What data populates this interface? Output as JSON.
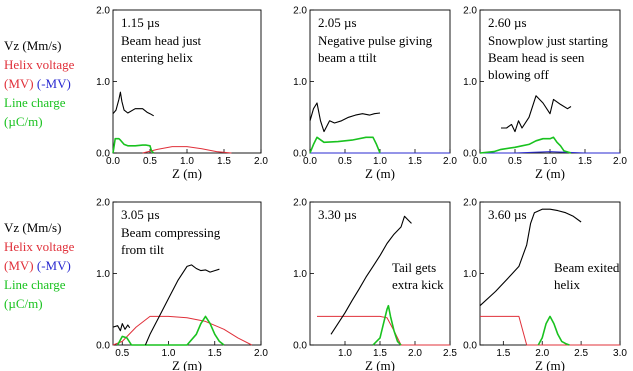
{
  "legend": {
    "vz": "Vz (Mm/s)",
    "helix_label": "Helix voltage",
    "helix_pos": "(MV)",
    "helix_neg": "(-MV)",
    "line_label": "Line charge",
    "line_units": "(µC/m)"
  },
  "colors": {
    "vz": "#000000",
    "helix_pos": "#e0303a",
    "helix_neg": "#2a2ad0",
    "line_charge": "#19c21f"
  },
  "chart_data": [
    {
      "type": "line",
      "time": "1.15 µs",
      "annotation": [
        "Beam head just",
        "entering helix"
      ],
      "xlabel": "Z (m)",
      "ylabel": "",
      "xlim": [
        0,
        2.0
      ],
      "ylim": [
        0,
        2.0
      ],
      "xticks": [
        "0.0",
        "0.5",
        "1.0",
        "1.5",
        "2.0"
      ],
      "yticks": [
        "0.0",
        "1.0",
        "2.0"
      ],
      "series": [
        {
          "key": "vz",
          "x": [
            0.0,
            0.04,
            0.08,
            0.1,
            0.12,
            0.15,
            0.2,
            0.3,
            0.4,
            0.46,
            0.5,
            0.55
          ],
          "y": [
            0.55,
            0.6,
            0.75,
            0.85,
            0.72,
            0.6,
            0.56,
            0.62,
            0.62,
            0.57,
            0.55,
            0.52
          ]
        },
        {
          "key": "line_charge",
          "x": [
            0.0,
            0.03,
            0.08,
            0.1,
            0.15,
            0.2,
            0.3,
            0.4,
            0.45,
            0.5,
            0.52,
            0.55
          ],
          "y": [
            0.0,
            0.2,
            0.2,
            0.18,
            0.12,
            0.1,
            0.1,
            0.11,
            0.11,
            0.1,
            0.03,
            0.0
          ]
        },
        {
          "key": "helix_pos",
          "x": [
            0.4,
            0.6,
            0.8,
            1.0,
            1.2,
            1.4,
            1.6
          ],
          "y": [
            0.0,
            0.05,
            0.09,
            0.09,
            0.06,
            0.02,
            0.0
          ]
        }
      ]
    },
    {
      "type": "line",
      "time": "2.05 µs",
      "annotation": [
        "Negative pulse giving",
        "beam a ttilt"
      ],
      "xlabel": "Z (m)",
      "ylabel": "",
      "xlim": [
        0,
        2.0
      ],
      "ylim": [
        0,
        2.0
      ],
      "xticks": [
        "0.0",
        "0.5",
        "1.0",
        "1.5",
        "2.0"
      ],
      "yticks": [
        "0.0",
        "1.0",
        "2.0"
      ],
      "series": [
        {
          "key": "vz",
          "x": [
            0.0,
            0.05,
            0.1,
            0.15,
            0.2,
            0.28,
            0.35,
            0.45,
            0.55,
            0.65,
            0.75,
            0.85,
            0.92,
            1.0
          ],
          "y": [
            0.45,
            0.62,
            0.7,
            0.45,
            0.3,
            0.45,
            0.42,
            0.45,
            0.5,
            0.53,
            0.55,
            0.53,
            0.55,
            0.56
          ]
        },
        {
          "key": "line_charge",
          "x": [
            0.0,
            0.05,
            0.1,
            0.2,
            0.4,
            0.6,
            0.8,
            0.9,
            0.95,
            1.0
          ],
          "y": [
            0.0,
            0.12,
            0.22,
            0.15,
            0.16,
            0.18,
            0.22,
            0.22,
            0.12,
            0.0
          ]
        },
        {
          "key": "helix_neg",
          "x": [
            0.0,
            0.5,
            1.0,
            1.5,
            2.0
          ],
          "y": [
            0.0,
            0.0,
            0.0,
            0.0,
            0.0
          ]
        }
      ]
    },
    {
      "type": "line",
      "time": "2.60 µs",
      "annotation": [
        "Snowplow just starting",
        "Beam head is seen",
        "blowing off"
      ],
      "xlabel": "Z (m)",
      "ylabel": "",
      "xlim": [
        0,
        2.0
      ],
      "ylim": [
        0,
        2.0
      ],
      "xticks": [
        "0.0",
        "0.5",
        "1.0",
        "1.5",
        "2.0"
      ],
      "yticks": [
        "0.0",
        "1.0",
        "2.0"
      ],
      "series": [
        {
          "key": "vz",
          "x": [
            0.3,
            0.38,
            0.45,
            0.5,
            0.55,
            0.6,
            0.7,
            0.8,
            0.9,
            1.0,
            1.05,
            1.15,
            1.25,
            1.3
          ],
          "y": [
            0.35,
            0.35,
            0.4,
            0.3,
            0.45,
            0.35,
            0.5,
            0.8,
            0.7,
            0.55,
            0.75,
            0.68,
            0.62,
            0.65
          ]
        },
        {
          "key": "line_charge",
          "x": [
            0.0,
            0.2,
            0.3,
            0.5,
            0.6,
            0.7,
            0.8,
            0.9,
            1.0,
            1.05,
            1.1,
            1.15,
            1.2,
            1.3
          ],
          "y": [
            0.0,
            0.02,
            0.05,
            0.08,
            0.1,
            0.12,
            0.17,
            0.2,
            0.2,
            0.22,
            0.15,
            0.1,
            0.03,
            0.0
          ]
        },
        {
          "key": "helix_neg",
          "x": [
            0.0,
            0.5,
            1.0,
            1.5,
            2.0
          ],
          "y": [
            0.0,
            0.0,
            0.02,
            0.0,
            0.0
          ]
        }
      ]
    },
    {
      "type": "line",
      "time": "3.05 µs",
      "annotation": [
        "Beam compressing",
        "from tilt"
      ],
      "xlabel": "Z (m)",
      "ylabel": "",
      "xlim": [
        0.4,
        2.0
      ],
      "ylim": [
        0,
        2.0
      ],
      "xticks": [
        "0.5",
        "1.0",
        "1.5",
        "2.0"
      ],
      "yticks": [
        "0.0",
        "1.0",
        "2.0"
      ],
      "series": [
        {
          "key": "vz",
          "x": [
            0.75,
            0.8,
            0.9,
            1.0,
            1.1,
            1.2,
            1.25,
            1.3,
            1.35,
            1.4,
            1.45,
            1.5,
            1.55
          ],
          "y": [
            0.0,
            0.15,
            0.4,
            0.65,
            0.9,
            1.1,
            1.12,
            1.07,
            1.04,
            1.05,
            1.02,
            1.04,
            1.06
          ]
        },
        {
          "key": "vz",
          "x": [
            0.4,
            0.45,
            0.48,
            0.5,
            0.53,
            0.56,
            0.58
          ],
          "y": [
            0.25,
            0.27,
            0.2,
            0.3,
            0.22,
            0.28,
            0.24
          ]
        },
        {
          "key": "line_charge",
          "x": [
            0.45,
            0.5,
            0.55,
            0.6,
            1.2,
            1.3,
            1.35,
            1.4,
            1.45,
            1.5,
            1.55,
            1.6
          ],
          "y": [
            0.0,
            0.12,
            0.1,
            0.0,
            0.0,
            0.15,
            0.3,
            0.4,
            0.3,
            0.15,
            0.05,
            0.0
          ]
        },
        {
          "key": "helix_pos",
          "x": [
            0.4,
            0.5,
            0.65,
            0.8,
            1.0,
            1.2,
            1.4,
            1.6,
            1.75,
            1.9
          ],
          "y": [
            0.0,
            0.05,
            0.25,
            0.4,
            0.4,
            0.38,
            0.33,
            0.22,
            0.1,
            0.0
          ]
        }
      ]
    },
    {
      "type": "line",
      "time": "3.30 µs",
      "annotation": [
        "Tail gets",
        "extra kick"
      ],
      "xlabel": "Z (m)",
      "ylabel": "",
      "xlim": [
        0.5,
        2.5
      ],
      "ylim": [
        0,
        2.0
      ],
      "xticks": [
        "1.0",
        "1.5",
        "2.0",
        "2.5"
      ],
      "yticks": [
        "0.0",
        "1.0",
        "2.0"
      ],
      "series": [
        {
          "key": "vz",
          "x": [
            0.8,
            0.9,
            1.0,
            1.1,
            1.2,
            1.3,
            1.4,
            1.5,
            1.6,
            1.7,
            1.8,
            1.85,
            1.9,
            1.95
          ],
          "y": [
            0.15,
            0.3,
            0.45,
            0.62,
            0.78,
            0.95,
            1.1,
            1.25,
            1.42,
            1.55,
            1.65,
            1.8,
            1.75,
            1.7
          ]
        },
        {
          "key": "line_charge",
          "x": [
            1.4,
            1.5,
            1.55,
            1.6,
            1.62,
            1.65,
            1.7,
            1.75,
            1.8
          ],
          "y": [
            0.0,
            0.1,
            0.3,
            0.5,
            0.55,
            0.4,
            0.2,
            0.05,
            0.0
          ]
        },
        {
          "key": "helix_pos",
          "x": [
            0.6,
            0.8,
            1.0,
            1.2,
            1.4,
            1.5,
            1.6,
            1.7,
            1.8,
            2.5
          ],
          "y": [
            0.4,
            0.4,
            0.4,
            0.4,
            0.4,
            0.4,
            0.38,
            0.2,
            0.0,
            0.0
          ]
        }
      ]
    },
    {
      "type": "line",
      "time": "3.60 µs",
      "annotation": [
        "Beam exited",
        "helix"
      ],
      "xlabel": "Z (m)",
      "ylabel": "",
      "xlim": [
        1.2,
        3.0
      ],
      "ylim": [
        0,
        2.0
      ],
      "xticks": [
        "1.5",
        "2.0",
        "2.5",
        "3.0"
      ],
      "yticks": [
        "0.0",
        "1.0",
        "2.0"
      ],
      "series": [
        {
          "key": "vz",
          "x": [
            1.2,
            1.4,
            1.6,
            1.7,
            1.8,
            1.85,
            1.9,
            2.0,
            2.1,
            2.2,
            2.3,
            2.4,
            2.5
          ],
          "y": [
            0.55,
            0.75,
            0.98,
            1.1,
            1.4,
            1.7,
            1.85,
            1.9,
            1.9,
            1.88,
            1.85,
            1.8,
            1.72
          ]
        },
        {
          "key": "line_charge",
          "x": [
            1.95,
            2.0,
            2.05,
            2.1,
            2.15,
            2.2,
            2.25,
            2.3,
            2.35
          ],
          "y": [
            0.0,
            0.1,
            0.3,
            0.4,
            0.3,
            0.15,
            0.05,
            0.02,
            0.0
          ]
        },
        {
          "key": "helix_pos",
          "x": [
            1.2,
            1.5,
            1.7,
            1.75,
            1.8,
            2.5,
            3.0
          ],
          "y": [
            0.4,
            0.4,
            0.4,
            0.2,
            0.0,
            0.0,
            0.0
          ]
        }
      ]
    }
  ]
}
